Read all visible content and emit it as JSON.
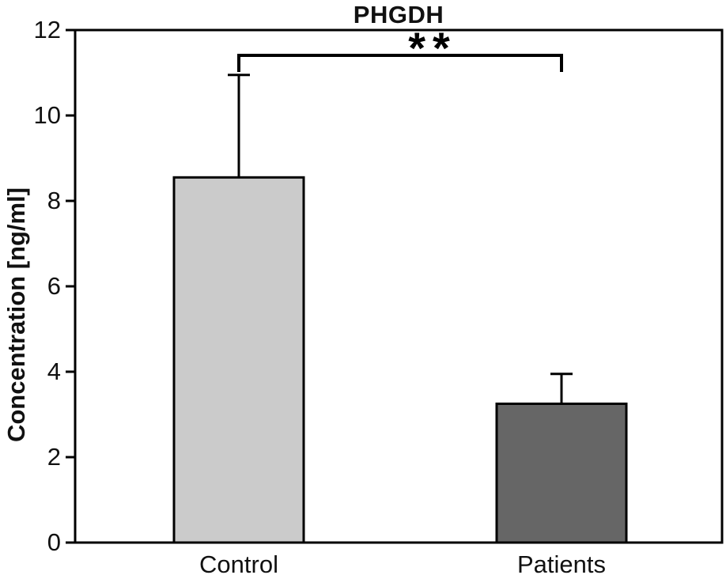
{
  "chart_data": {
    "type": "bar",
    "title": "PHGDH",
    "ylabel": "Concentration [ng/ml]",
    "xlabel": "",
    "categories": [
      "Control",
      "Patients"
    ],
    "values": [
      8.55,
      3.25
    ],
    "errors_plus": [
      2.4,
      0.7
    ],
    "ylim": [
      0,
      12
    ],
    "yticks": [
      0,
      2,
      4,
      6,
      8,
      10,
      12
    ],
    "grid": false,
    "legend": false,
    "bar_colors": [
      "#cbcbcb",
      "#666666"
    ],
    "axis_color": "#000000",
    "text_color": "#111111",
    "significance": {
      "label": "**",
      "groups": [
        "Control",
        "Patients"
      ]
    }
  }
}
